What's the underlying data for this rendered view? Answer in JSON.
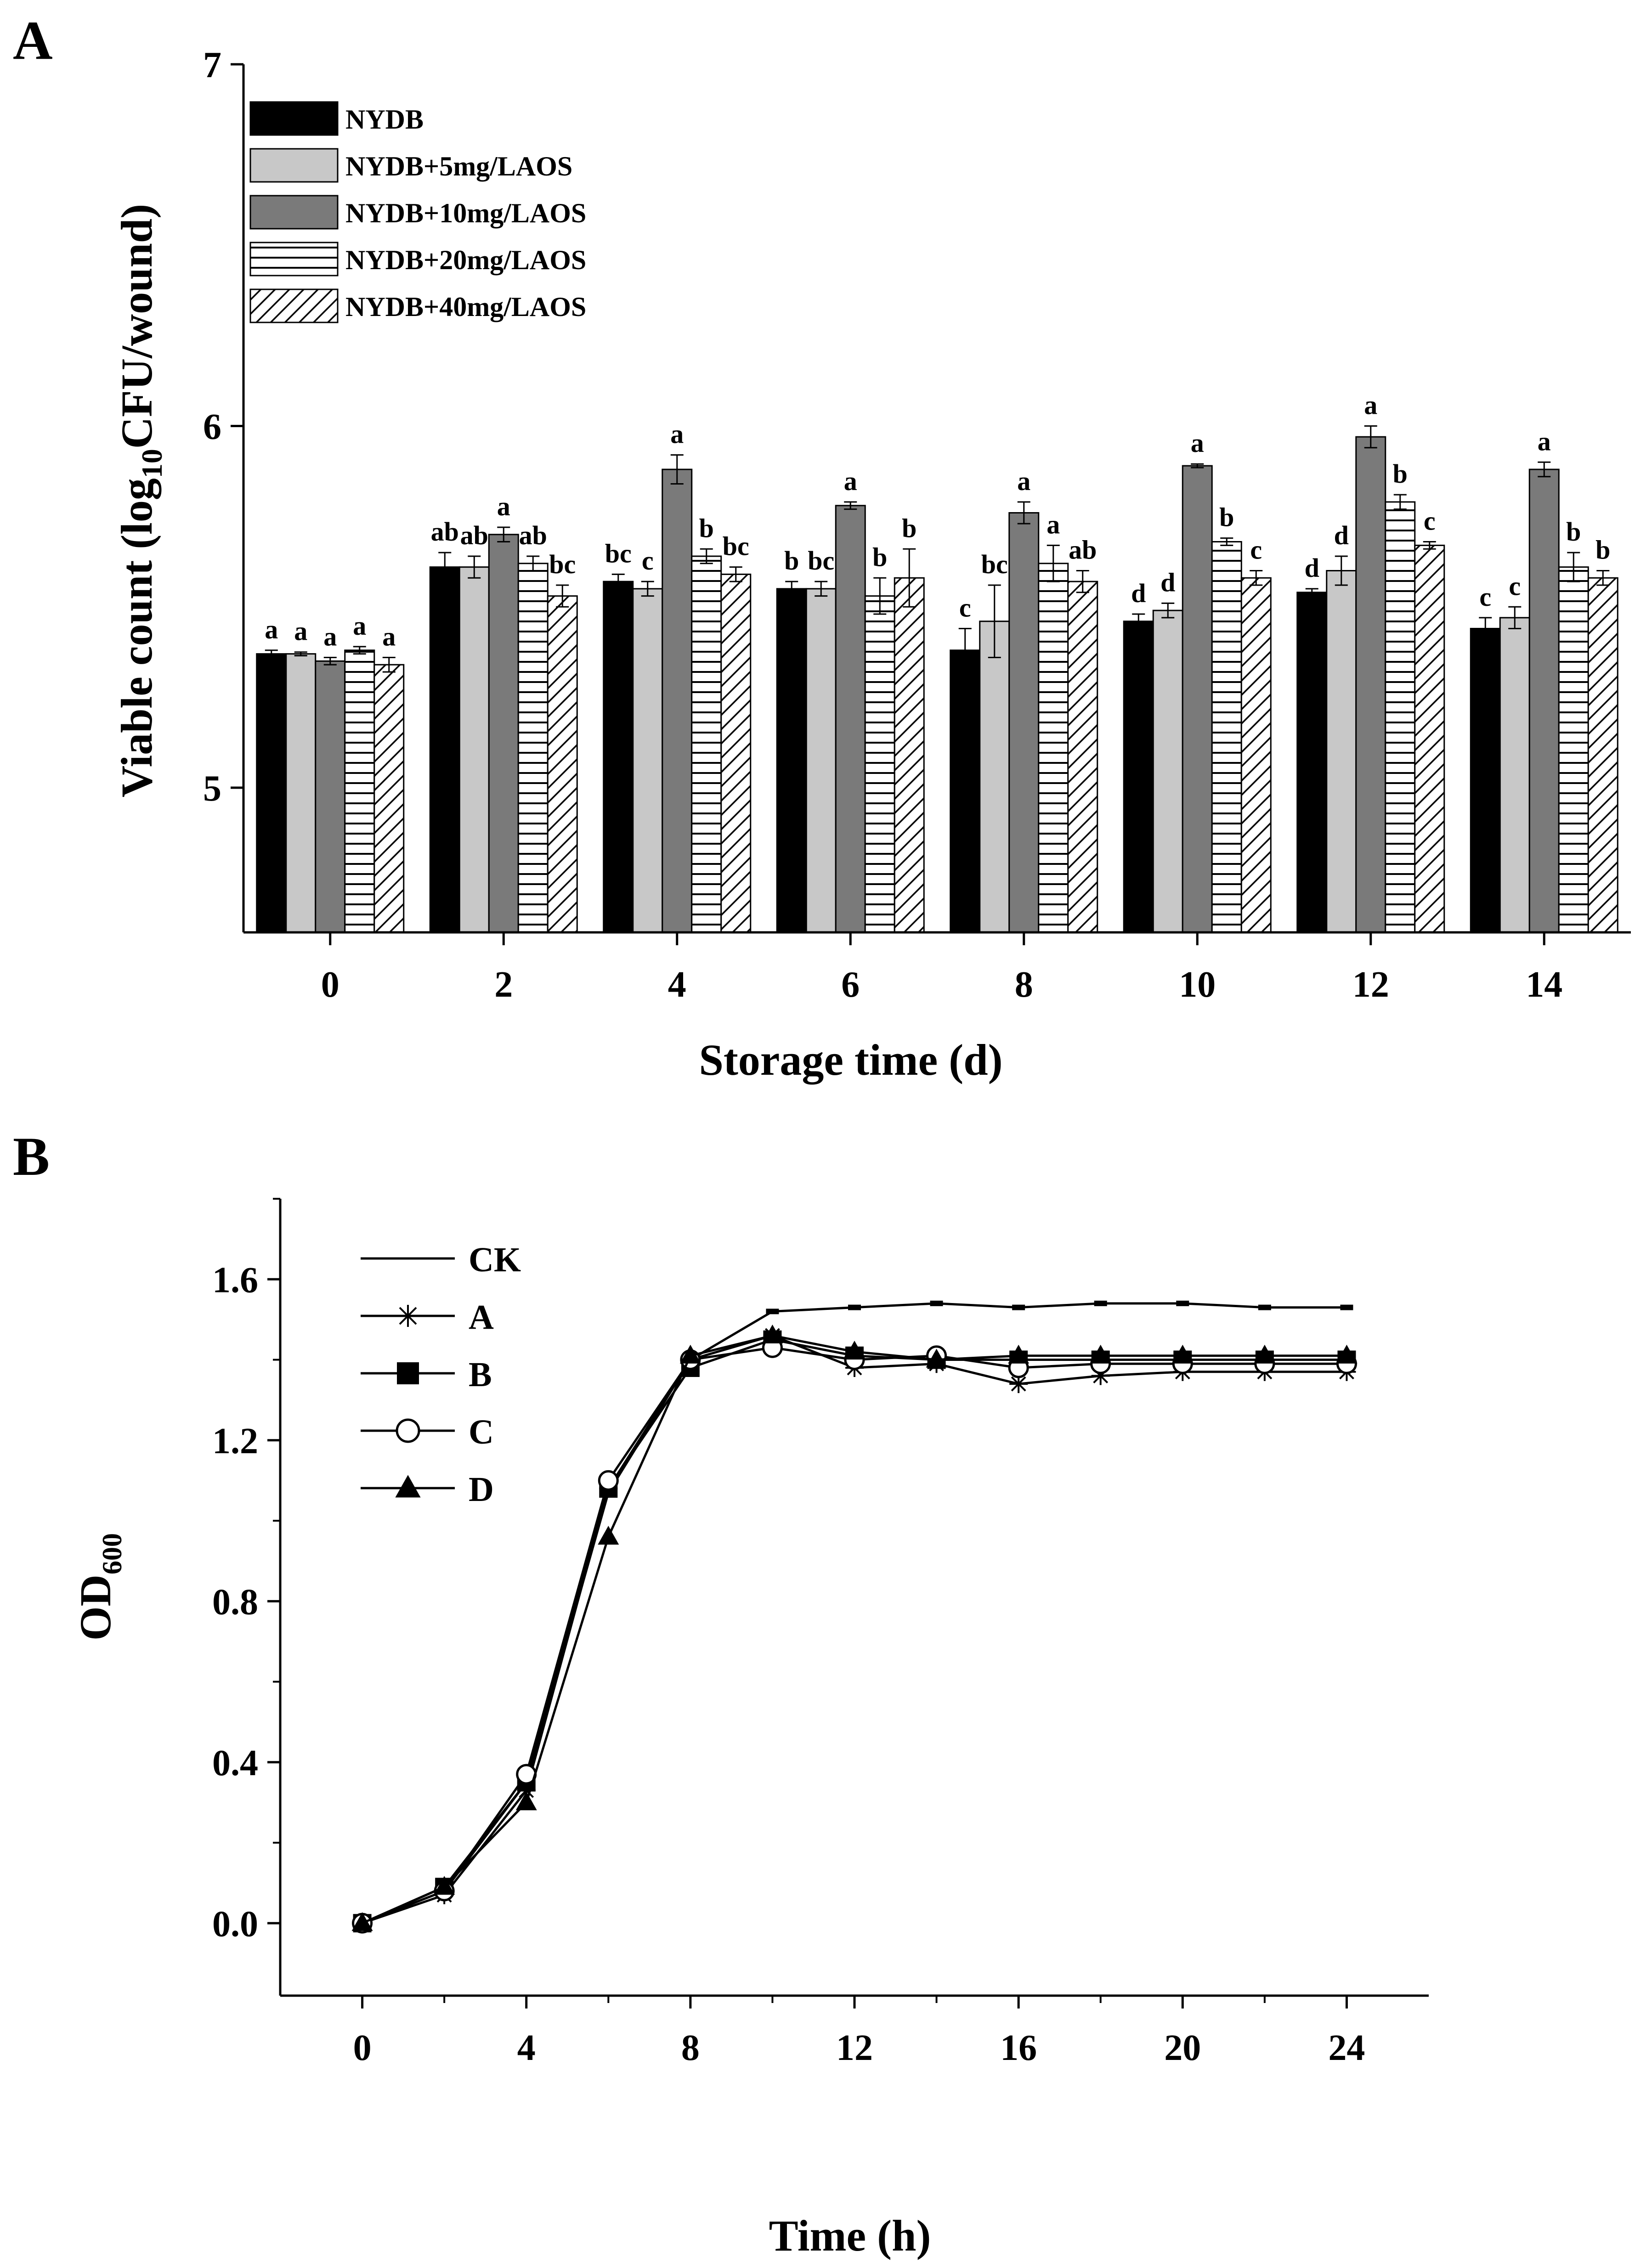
{
  "figure": {
    "panels": [
      "A",
      "B"
    ]
  },
  "chart_data": [
    {
      "panel": "A",
      "type": "bar",
      "xlabel": "Storage time (d)",
      "ylabel_parts": [
        "Viable count (log",
        "10",
        "CFU/wound)"
      ],
      "categories": [
        "0",
        "2",
        "4",
        "6",
        "8",
        "10",
        "12",
        "14"
      ],
      "ylim": [
        4.6,
        7.0
      ],
      "yticks": [
        "5",
        "6",
        "7"
      ],
      "legend_position": "top-left",
      "grid": false,
      "series": [
        {
          "name": "NYDB",
          "fill": "#000000",
          "pattern": "solid",
          "values": [
            5.37,
            5.61,
            5.57,
            5.55,
            5.38,
            5.46,
            5.54,
            5.44
          ],
          "errors": [
            0.01,
            0.04,
            0.02,
            0.02,
            0.06,
            0.02,
            0.01,
            0.03
          ],
          "sig": [
            "a",
            "ab",
            "bc",
            "b",
            "c",
            "d",
            "d",
            "c"
          ]
        },
        {
          "name": "NYDB+5mg/LAOS",
          "fill": "#c8c8c8",
          "pattern": "solid",
          "values": [
            5.37,
            5.61,
            5.55,
            5.55,
            5.46,
            5.49,
            5.6,
            5.47
          ],
          "errors": [
            0.005,
            0.03,
            0.02,
            0.02,
            0.1,
            0.02,
            0.04,
            0.03
          ],
          "sig": [
            "a",
            "ab",
            "c",
            "bc",
            "bc",
            "d",
            "d",
            "c"
          ]
        },
        {
          "name": "NYDB+10mg/LAOS",
          "fill": "#7a7a7a",
          "pattern": "solid",
          "values": [
            5.35,
            5.7,
            5.88,
            5.78,
            5.76,
            5.89,
            5.97,
            5.88
          ],
          "errors": [
            0.01,
            0.02,
            0.04,
            0.01,
            0.03,
            0.005,
            0.03,
            0.02
          ],
          "sig": [
            "a",
            "a",
            "a",
            "a",
            "a",
            "a",
            "a",
            "a"
          ]
        },
        {
          "name": "NYDB+20mg/LAOS",
          "fill": "#ffffff",
          "pattern": "horizontal",
          "values": [
            5.38,
            5.62,
            5.64,
            5.53,
            5.62,
            5.68,
            5.79,
            5.61
          ],
          "errors": [
            0.01,
            0.02,
            0.02,
            0.05,
            0.05,
            0.01,
            0.02,
            0.04
          ],
          "sig": [
            "a",
            "ab",
            "b",
            "b",
            "a",
            "b",
            "b",
            "b"
          ]
        },
        {
          "name": "NYDB+40mg/LAOS",
          "fill": "#ffffff",
          "pattern": "diagonal",
          "values": [
            5.34,
            5.53,
            5.59,
            5.58,
            5.57,
            5.58,
            5.67,
            5.58
          ],
          "errors": [
            0.02,
            0.03,
            0.02,
            0.08,
            0.03,
            0.02,
            0.01,
            0.02
          ],
          "sig": [
            "a",
            "bc",
            "bc",
            "b",
            "ab",
            "c",
            "c",
            "b"
          ]
        }
      ]
    },
    {
      "panel": "B",
      "type": "line",
      "xlabel": "Time (h)",
      "ylabel_main": "OD",
      "ylabel_sub": "600",
      "xlim": [
        -2,
        26
      ],
      "ylim": [
        -0.18,
        1.8
      ],
      "xticks": [
        "0",
        "4",
        "8",
        "12",
        "16",
        "20",
        "24"
      ],
      "yticks": [
        "0.0",
        "0.4",
        "0.8",
        "1.2",
        "1.6"
      ],
      "legend_position": "top-left",
      "grid": false,
      "x": [
        0,
        2,
        4,
        6,
        8,
        10,
        12,
        14,
        16,
        18,
        20,
        22,
        24
      ],
      "series": [
        {
          "name": "CK",
          "marker": "dash",
          "values": [
            0.0,
            0.08,
            0.35,
            1.07,
            1.4,
            1.52,
            1.53,
            1.54,
            1.53,
            1.54,
            1.54,
            1.53,
            1.53
          ]
        },
        {
          "name": "A",
          "marker": "star",
          "values": [
            0.0,
            0.07,
            0.33,
            1.08,
            1.4,
            1.46,
            1.38,
            1.39,
            1.34,
            1.36,
            1.37,
            1.37,
            1.37
          ]
        },
        {
          "name": "B",
          "marker": "square",
          "values": [
            0.0,
            0.09,
            0.35,
            1.08,
            1.38,
            1.45,
            1.41,
            1.4,
            1.4,
            1.4,
            1.4,
            1.4,
            1.4
          ]
        },
        {
          "name": "C",
          "marker": "circle",
          "values": [
            0.0,
            0.08,
            0.37,
            1.1,
            1.4,
            1.43,
            1.4,
            1.41,
            1.38,
            1.39,
            1.39,
            1.39,
            1.39
          ]
        },
        {
          "name": "D",
          "marker": "triangle",
          "values": [
            0.0,
            0.09,
            0.3,
            0.96,
            1.41,
            1.46,
            1.42,
            1.4,
            1.41,
            1.41,
            1.41,
            1.41,
            1.41
          ]
        }
      ]
    }
  ]
}
